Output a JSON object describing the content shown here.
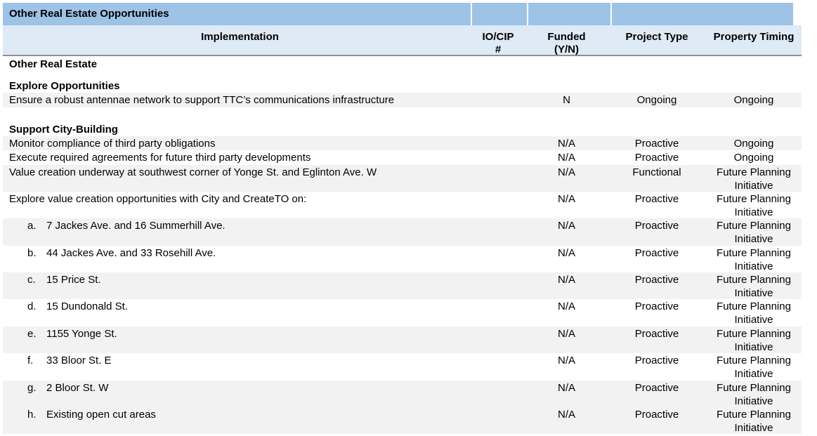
{
  "colors": {
    "title_band": "#9DC3E6",
    "header_row": "#DEEAF6",
    "row_stripe": "#F2F2F2",
    "header_border": "#8F8F8F"
  },
  "table": {
    "title": "Other Real Estate Opportunities",
    "header": {
      "implementation": "Implementation",
      "io_cip_lines": [
        "IO/CIP",
        "#"
      ],
      "funded_lines": [
        "Funded",
        "(Y/N)"
      ],
      "project_type": "Project Type",
      "property_timing": "Property Timing"
    },
    "rows": [
      {
        "kind": "section",
        "text": "Other Real Estate"
      },
      {
        "kind": "spacer",
        "size": "small"
      },
      {
        "kind": "section",
        "text": "Explore Opportunities"
      },
      {
        "kind": "item",
        "text": "Ensure a robust antennae network to support TTC’s communications infrastructure",
        "io_cip": "",
        "funded": "N",
        "project_type": "Ongoing",
        "timing": "Ongoing",
        "shaded": true,
        "lines": 1
      },
      {
        "kind": "spacer",
        "size": "regular"
      },
      {
        "kind": "section",
        "text": "Support City-Building"
      },
      {
        "kind": "item",
        "text": "Monitor compliance of third party obligations",
        "io_cip": "",
        "funded": "N/A",
        "project_type": "Proactive",
        "timing": "Ongoing",
        "shaded": true,
        "lines": 1
      },
      {
        "kind": "item",
        "text": "Execute required agreements for future third party developments",
        "io_cip": "",
        "funded": "N/A",
        "project_type": "Proactive",
        "timing": "Ongoing",
        "shaded": false,
        "lines": 1
      },
      {
        "kind": "item",
        "text": "Value creation underway at southwest corner of Yonge St. and Eglinton Ave. W",
        "io_cip": "",
        "funded": "N/A",
        "project_type": "Functional",
        "timing": "Future Planning Initiative",
        "shaded": true,
        "lines": 2
      },
      {
        "kind": "item",
        "text": "Explore value creation opportunities with City and CreateTO on:",
        "io_cip": "",
        "funded": "N/A",
        "project_type": "Proactive",
        "timing": "Future Planning Initiative",
        "shaded": false,
        "lines": 2
      },
      {
        "kind": "item",
        "letter": "a.",
        "text": "7 Jackes Ave. and 16 Summerhill Ave.",
        "io_cip": "",
        "funded": "N/A",
        "project_type": "Proactive",
        "timing": "Future Planning Initiative",
        "shaded": true,
        "lines": 2
      },
      {
        "kind": "item",
        "letter": "b.",
        "text": "44 Jackes Ave. and 33 Rosehill Ave.",
        "io_cip": "",
        "funded": "N/A",
        "project_type": "Proactive",
        "timing": "Future Planning Initiative",
        "shaded": false,
        "lines": 2
      },
      {
        "kind": "item",
        "letter": "c.",
        "text": "15 Price St.",
        "io_cip": "",
        "funded": "N/A",
        "project_type": "Proactive",
        "timing": "Future Planning Initiative",
        "shaded": true,
        "lines": 2
      },
      {
        "kind": "item",
        "letter": "d.",
        "text": "15 Dundonald St.",
        "io_cip": "",
        "funded": "N/A",
        "project_type": "Proactive",
        "timing": "Future Planning Initiative",
        "shaded": false,
        "lines": 2
      },
      {
        "kind": "item",
        "letter": "e.",
        "text": "1155 Yonge St.",
        "io_cip": "",
        "funded": "N/A",
        "project_type": "Proactive",
        "timing": "Future Planning Initiative",
        "shaded": true,
        "lines": 2
      },
      {
        "kind": "item",
        "letter": "f.",
        "text": "33 Bloor St. E",
        "io_cip": "",
        "funded": "N/A",
        "project_type": "Proactive",
        "timing": "Future Planning Initiative",
        "shaded": false,
        "lines": 2
      },
      {
        "kind": "item",
        "letter": "g.",
        "text": "2 Bloor St. W",
        "io_cip": "",
        "funded": "N/A",
        "project_type": "Proactive",
        "timing": "Future Planning Initiative",
        "shaded": true,
        "lines": 2
      },
      {
        "kind": "item",
        "letter": "h.",
        "text": "Existing open cut areas",
        "io_cip": "",
        "funded": "N/A",
        "project_type": "Proactive",
        "timing": "Future Planning Initiative",
        "shaded": true,
        "lines": 2
      }
    ]
  }
}
